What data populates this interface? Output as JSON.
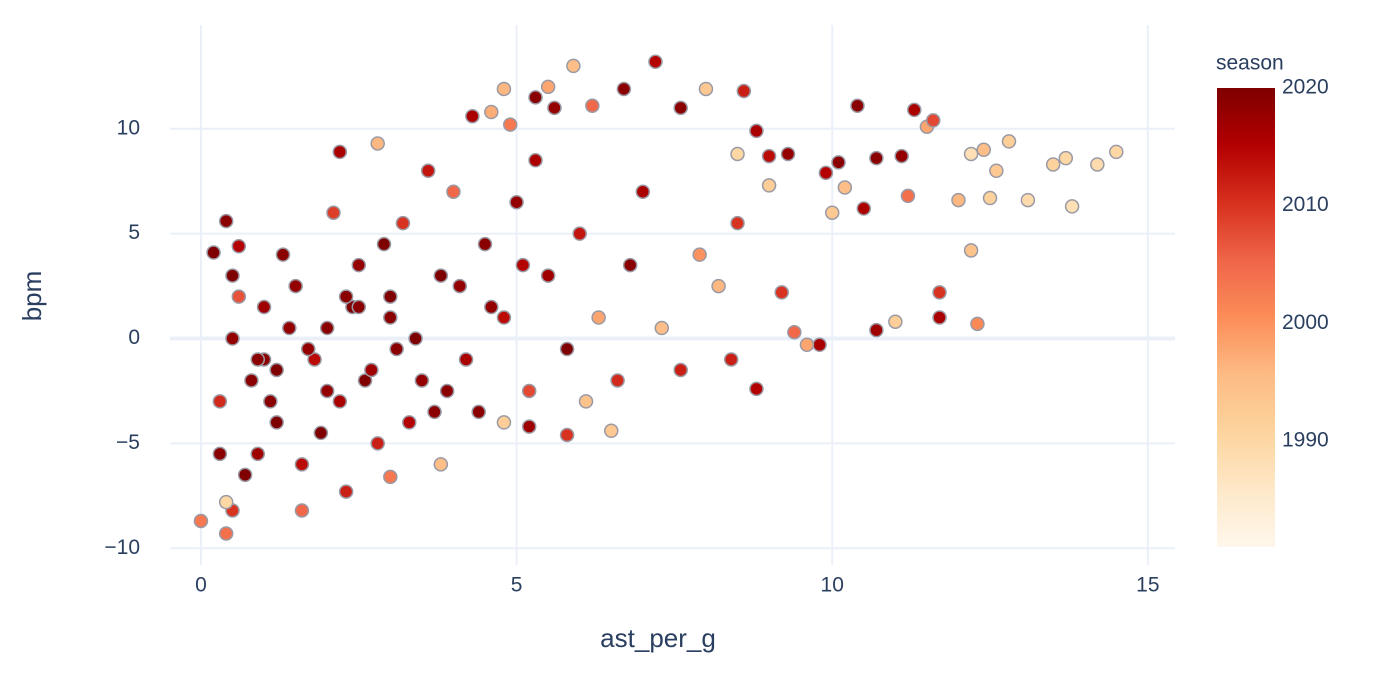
{
  "chart_data": {
    "type": "scatter",
    "x_label": "ast_per_g",
    "y_label": "bpm",
    "xlim": [
      -0.49,
      15.43
    ],
    "ylim": [
      -10.8,
      14.95
    ],
    "xticks": [
      0,
      5,
      10,
      15
    ],
    "yticks": [
      {
        "value": -10,
        "label": "−10"
      },
      {
        "value": -5,
        "label": "−5"
      },
      0,
      5,
      10
    ],
    "grid": true,
    "colorbar": {
      "title": "season",
      "lim": [
        1981,
        2020
      ],
      "ticks": [
        1990,
        2000,
        2010,
        2020
      ],
      "colorscale": [
        "#fff7ec",
        "#fee8c8",
        "#fdd49e",
        "#fdbb84",
        "#fc8d59",
        "#ef6548",
        "#d7301f",
        "#b30000",
        "#7f0000"
      ]
    },
    "series": [
      {
        "x": [
          14.5,
          14.2,
          13.8,
          13.7,
          13.5,
          13.1,
          12.8,
          12.6,
          12.5,
          12.4,
          12.2,
          12.2,
          12.0,
          11.5,
          11.6,
          11.7,
          11.7,
          12.3,
          11.3,
          10.4,
          10.7,
          10.7,
          11.1,
          11.2,
          11.0,
          10.1,
          10.5,
          10.0,
          10.2,
          9.9,
          9.0,
          9.3,
          9.0,
          9.2,
          9.8,
          9.6,
          9.4,
          8.8,
          8.6,
          8.5,
          8.0,
          8.8,
          8.4,
          7.2,
          6.7,
          7.6,
          5.9,
          5.5,
          4.8,
          6.2,
          5.6,
          5.3,
          4.6,
          4.9,
          4.3,
          2.8,
          2.2,
          6.5,
          5.8,
          5.2,
          4.8,
          3.8,
          3.0,
          2.3,
          1.6,
          0.4,
          0.0,
          0.5,
          0.4,
          0.2,
          0.4,
          0.6,
          0.5,
          0.8,
          1.0,
          1.2,
          1.5,
          1.8,
          2.0,
          2.2,
          2.5,
          2.8,
          3.0,
          3.2,
          3.5,
          3.8,
          4.0,
          4.2,
          4.5,
          4.8,
          5.0,
          5.2,
          5.5,
          5.8,
          6.0,
          6.3,
          6.6,
          6.8,
          7.0,
          7.3,
          7.6,
          7.9,
          8.2,
          8.5,
          0.3,
          0.6,
          0.9,
          1.3,
          1.6,
          2.1,
          2.6,
          3.3,
          3.6,
          4.4,
          5.3,
          6.1,
          1.0,
          2.4,
          3.1,
          4.1,
          0.7,
          1.1,
          1.4,
          1.9,
          2.3,
          2.7,
          3.4,
          3.9,
          4.6,
          5.1,
          0.5,
          0.9,
          1.7,
          2.9,
          3.7,
          0.3,
          1.2,
          2.0,
          2.5,
          3.0
        ],
        "values": [
          8.9,
          8.3,
          6.3,
          8.6,
          8.3,
          6.6,
          9.4,
          8.0,
          6.7,
          9.0,
          8.8,
          4.2,
          6.6,
          10.1,
          10.4,
          2.2,
          1.0,
          0.7,
          10.9,
          11.1,
          8.6,
          0.4,
          8.7,
          6.8,
          0.8,
          8.4,
          6.2,
          6.0,
          7.2,
          7.9,
          8.7,
          8.8,
          7.3,
          2.2,
          -0.3,
          -0.3,
          0.3,
          9.9,
          11.8,
          8.8,
          11.9,
          -2.4,
          -1.0,
          13.2,
          11.9,
          11.0,
          13.0,
          12.0,
          11.9,
          11.1,
          11.0,
          11.5,
          10.8,
          10.2,
          10.6,
          9.3,
          8.9,
          -4.4,
          -4.6,
          -4.2,
          -4.0,
          -6.0,
          -6.6,
          -7.3,
          -8.2,
          -9.3,
          -8.7,
          -8.2,
          -7.8,
          4.1,
          5.6,
          4.4,
          0.0,
          -2.0,
          1.5,
          -4.0,
          2.5,
          -1.0,
          0.5,
          -3.0,
          3.5,
          -5.0,
          1.0,
          5.5,
          -2.0,
          3.0,
          7.0,
          -1.0,
          4.5,
          1.0,
          6.5,
          -2.5,
          3.0,
          -0.5,
          5.0,
          1.0,
          -2.0,
          3.5,
          7.0,
          0.5,
          -1.5,
          4.0,
          2.5,
          5.5,
          -3.0,
          2.0,
          -5.5,
          4.0,
          -6.0,
          6.0,
          -2.0,
          -4.0,
          8.0,
          -3.5,
          8.5,
          -3.0,
          -1.0,
          1.5,
          -0.5,
          2.5,
          -6.5,
          -3.0,
          0.5,
          -4.5,
          2.0,
          -1.5,
          0.0,
          -2.5,
          1.5,
          3.5,
          3.0,
          -1.0,
          -0.5,
          4.5,
          -3.5,
          -5.5,
          -1.5,
          -2.5,
          1.5,
          2.0
        ],
        "season": [
          1990,
          1989,
          1988,
          1990,
          1991,
          1989,
          1992,
          1993,
          1991,
          1995,
          1988,
          1994,
          1996,
          1998,
          2008,
          2010,
          2016,
          2001,
          2016,
          2019,
          2019,
          2017,
          2018,
          2004,
          1992,
          2019,
          2016,
          1993,
          1995,
          2015,
          2014,
          2018,
          1992,
          2010,
          2016,
          1998,
          2005,
          2016,
          2012,
          1990,
          1993,
          2015,
          2012,
          2015,
          2019,
          2019,
          1995,
          1998,
          1996,
          2005,
          2018,
          2019,
          1997,
          2003,
          2016,
          1996,
          2016,
          1993,
          2010,
          2017,
          1992,
          1995,
          2003,
          2012,
          2005,
          2004,
          2003,
          2010,
          1990,
          2020,
          2019,
          2015,
          2018,
          2019,
          2017,
          2020,
          2018,
          2014,
          2019,
          2016,
          2018,
          2012,
          2019,
          2010,
          2018,
          2020,
          2005,
          2016,
          2019,
          2014,
          2018,
          2008,
          2017,
          2020,
          2013,
          1998,
          2011,
          2019,
          2016,
          1995,
          2012,
          2000,
          1996,
          2010,
          2011,
          2007,
          2017,
          2019,
          2014,
          2009,
          2020,
          2015,
          2013,
          2019,
          2016,
          1994,
          2019,
          2020,
          2019,
          2018,
          2020,
          2019,
          2018,
          2020,
          2019,
          2017,
          2020,
          2019,
          2018,
          2015,
          2020,
          2019,
          2018,
          2020,
          2019,
          2019,
          2020,
          2018,
          2019,
          2020
        ]
      }
    ]
  }
}
